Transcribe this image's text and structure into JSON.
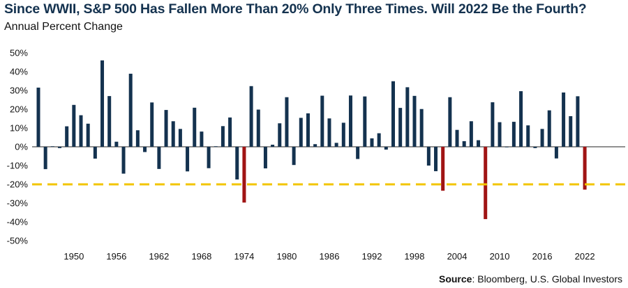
{
  "chart_data": {
    "type": "bar",
    "title": "Since WWII, S&P 500 Has Fallen More Than 20% Only Three Times. Will 2022 Be the Fourth?",
    "subtitle": "Annual Percent Change",
    "xlabel": "",
    "ylabel": "",
    "ylim": [
      -50,
      50
    ],
    "ytick_labels": [
      "50%",
      "40%",
      "30%",
      "20%",
      "10%",
      "0%",
      "-10%",
      "-20%",
      "-30%",
      "-40%",
      "-50%"
    ],
    "yticks": [
      50,
      40,
      30,
      20,
      10,
      0,
      -10,
      -20,
      -30,
      -40,
      -50
    ],
    "x_tick_labels": [
      "1950",
      "1956",
      "1962",
      "1968",
      "1974",
      "1980",
      "1986",
      "1992",
      "1998",
      "2004",
      "2010",
      "2016",
      "2022"
    ],
    "reference_line": {
      "value": -20,
      "style": "dashed",
      "color": "#f2c500"
    },
    "bar_color": "#14324f",
    "highlight_color": "#a01414",
    "highlight_threshold": -20,
    "grid": false,
    "series": [
      {
        "x": [
          1945,
          1946,
          1947,
          1948,
          1949,
          1950,
          1951,
          1952,
          1953,
          1954,
          1955,
          1956,
          1957,
          1958,
          1959,
          1960,
          1961,
          1962,
          1963,
          1964,
          1965,
          1966,
          1967,
          1968,
          1969,
          1970,
          1971,
          1972,
          1973,
          1974,
          1975,
          1976,
          1977,
          1978,
          1979,
          1980,
          1981,
          1982,
          1983,
          1984,
          1985,
          1986,
          1987,
          1988,
          1989,
          1990,
          1991,
          1992,
          1993,
          1994,
          1995,
          1996,
          1997,
          1998,
          1999,
          2000,
          2001,
          2002,
          2003,
          2004,
          2005,
          2006,
          2007,
          2008,
          2009,
          2010,
          2011,
          2012,
          2013,
          2014,
          2015,
          2016,
          2017,
          2018,
          2019,
          2020,
          2021,
          2022
        ],
        "values": [
          31.5,
          -11.9,
          0,
          -0.7,
          10.9,
          22.3,
          16.8,
          12.3,
          -6.3,
          46,
          27,
          2.7,
          -14.3,
          38.9,
          8.8,
          -2.8,
          23.6,
          -11.8,
          19.6,
          13.6,
          9.5,
          -13.1,
          20.8,
          8.1,
          -11.4,
          0.1,
          11,
          15.6,
          -17.4,
          -29.7,
          32.3,
          19.8,
          -11.5,
          1.1,
          12.5,
          26.4,
          -9.7,
          15.4,
          17.8,
          1.4,
          27.2,
          15.1,
          2.1,
          12.8,
          27.3,
          -6.5,
          26.8,
          4.5,
          7.2,
          -1.5,
          34.9,
          20.7,
          31.7,
          27.1,
          20.1,
          -10,
          -13,
          -23.4,
          26.4,
          9,
          3,
          13.6,
          3.5,
          -38.5,
          23.7,
          13.1,
          -0.004,
          13.3,
          29.6,
          11.4,
          -0.7,
          9.5,
          19.4,
          -6.2,
          28.9,
          16.3,
          26.9,
          -22.8
        ]
      }
    ]
  },
  "source": {
    "label": "Source",
    "text": ": Bloomberg, U.S. Global Investors"
  }
}
